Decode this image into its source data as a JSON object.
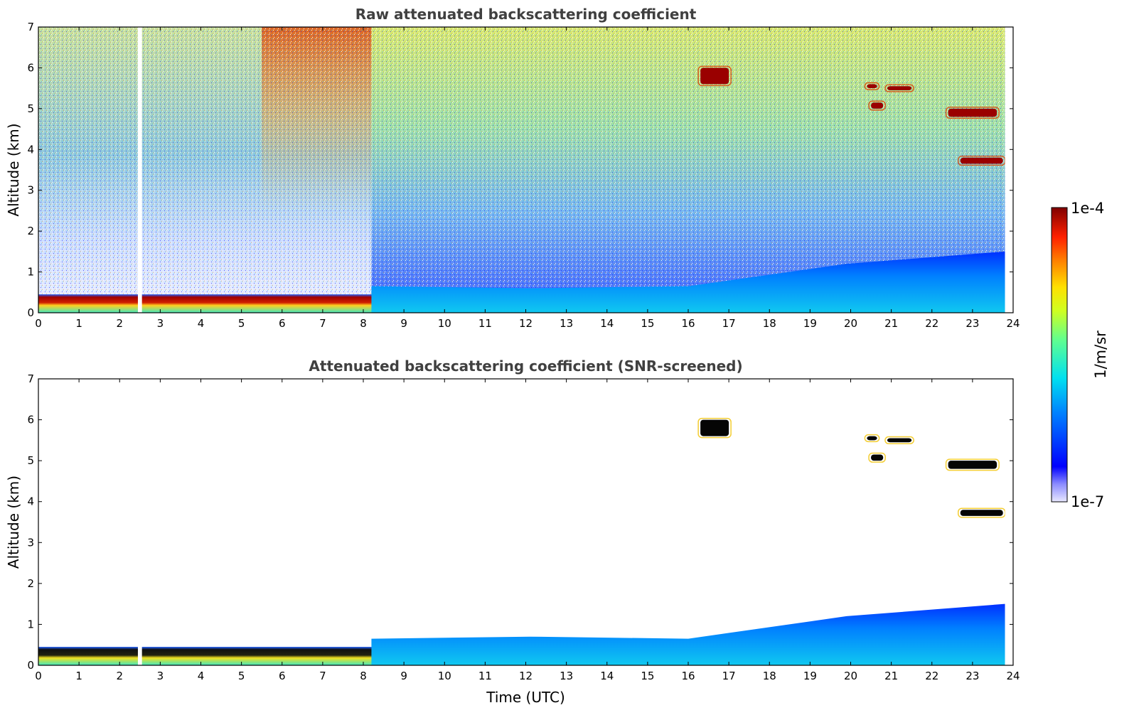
{
  "chart_data": [
    {
      "type": "heatmap",
      "title": "Raw attenuated backscattering coefficient",
      "xlabel": "",
      "ylabel": "Altitude (km)",
      "xlim": [
        0,
        24
      ],
      "ylim": [
        0,
        7
      ],
      "xticks": [
        "0",
        "1",
        "2",
        "3",
        "4",
        "5",
        "6",
        "7",
        "8",
        "9",
        "10",
        "11",
        "12",
        "13",
        "14",
        "15",
        "16",
        "17",
        "18",
        "19",
        "20",
        "21",
        "22",
        "23",
        "24"
      ],
      "yticks": [
        "0",
        "1",
        "2",
        "3",
        "4",
        "5",
        "6",
        "7"
      ],
      "data_gap": {
        "x": [
          2.45,
          2.55
        ]
      },
      "data_end_x": 23.8,
      "features": [
        {
          "kind": "near-surface layer",
          "x": [
            0,
            8.6
          ],
          "y": [
            0.15,
            0.45
          ],
          "level": "high"
        },
        {
          "kind": "boundary layer",
          "x": [
            8.2,
            23.8
          ],
          "y_top": [
            0.65,
            0.6,
            0.65,
            1.2,
            1.5
          ]
        },
        {
          "kind": "cloud",
          "x": [
            16.3,
            17.0
          ],
          "y": [
            5.6,
            6.0
          ]
        },
        {
          "kind": "cloud",
          "x": [
            20.5,
            20.8
          ],
          "y": [
            5.0,
            5.15
          ]
        },
        {
          "kind": "cloud",
          "x": [
            20.4,
            20.65
          ],
          "y": [
            5.5,
            5.6
          ]
        },
        {
          "kind": "cloud",
          "x": [
            20.9,
            21.5
          ],
          "y": [
            5.45,
            5.55
          ]
        },
        {
          "kind": "cloud",
          "x": [
            22.4,
            23.6
          ],
          "y": [
            4.8,
            5.0
          ]
        },
        {
          "kind": "cloud",
          "x": [
            22.7,
            23.75
          ],
          "y": [
            3.65,
            3.8
          ]
        }
      ]
    },
    {
      "type": "heatmap",
      "title": "Attenuated backscattering coefficient (SNR-screened)",
      "xlabel": "Time (UTC)",
      "ylabel": "Altitude (km)",
      "xlim": [
        0,
        24
      ],
      "ylim": [
        0,
        7
      ],
      "xticks": [
        "0",
        "1",
        "2",
        "3",
        "4",
        "5",
        "6",
        "7",
        "8",
        "9",
        "10",
        "11",
        "12",
        "13",
        "14",
        "15",
        "16",
        "17",
        "18",
        "19",
        "20",
        "21",
        "22",
        "23",
        "24"
      ],
      "yticks": [
        "0",
        "1",
        "2",
        "3",
        "4",
        "5",
        "6",
        "7"
      ],
      "data_gap": {
        "x": [
          2.45,
          2.55
        ]
      },
      "data_end_x": 23.8,
      "features": [
        {
          "kind": "near-surface layer",
          "x": [
            0,
            8.6
          ],
          "y": [
            0.15,
            0.45
          ],
          "level": "saturated"
        },
        {
          "kind": "boundary layer",
          "x": [
            8.2,
            23.8
          ],
          "y_top": [
            0.65,
            0.7,
            0.65,
            1.2,
            1.5
          ]
        },
        {
          "kind": "cloud",
          "x": [
            16.3,
            17.0
          ],
          "y": [
            5.6,
            6.0
          ]
        },
        {
          "kind": "cloud",
          "x": [
            20.5,
            20.8
          ],
          "y": [
            5.0,
            5.15
          ]
        },
        {
          "kind": "cloud",
          "x": [
            20.4,
            20.65
          ],
          "y": [
            5.5,
            5.6
          ]
        },
        {
          "kind": "cloud",
          "x": [
            20.9,
            21.5
          ],
          "y": [
            5.45,
            5.55
          ]
        },
        {
          "kind": "cloud",
          "x": [
            22.4,
            23.6
          ],
          "y": [
            4.8,
            5.0
          ]
        },
        {
          "kind": "cloud",
          "x": [
            22.7,
            23.75
          ],
          "y": [
            3.65,
            3.8
          ]
        }
      ]
    }
  ],
  "colorbar": {
    "label": "1/m/sr",
    "max_label": "1e-4",
    "min_label": "1e-7",
    "range": [
      1e-07,
      0.0001
    ],
    "scale": "log",
    "colormap": "jet"
  }
}
